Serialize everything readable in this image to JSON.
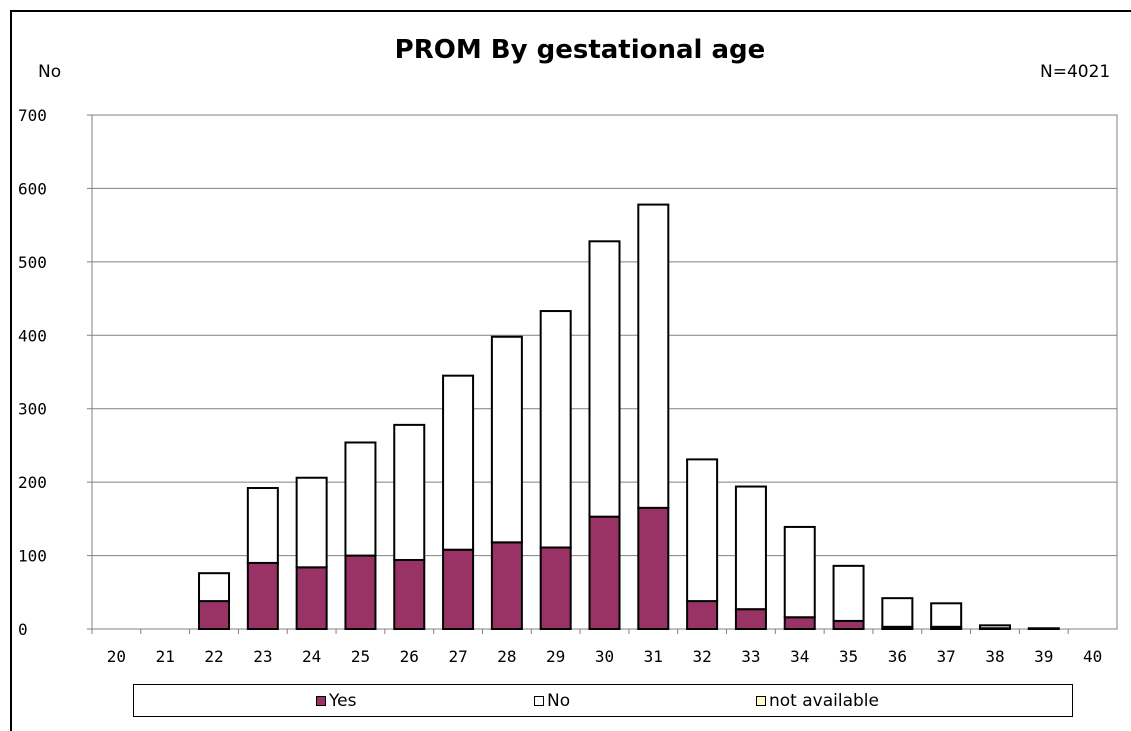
{
  "chart_data": {
    "type": "bar",
    "stacked": true,
    "title": "PROM By gestational age",
    "ylabel": "No",
    "annotation": "N=4021",
    "ylim": [
      0,
      700
    ],
    "yticks": [
      0,
      100,
      200,
      300,
      400,
      500,
      600,
      700
    ],
    "grid": true,
    "legend_position": "bottom",
    "categories": [
      "20",
      "21",
      "22",
      "23",
      "24",
      "25",
      "26",
      "27",
      "28",
      "29",
      "30",
      "31",
      "32",
      "33",
      "34",
      "35",
      "36",
      "37",
      "38",
      "39",
      "40"
    ],
    "series": [
      {
        "name": "Yes",
        "color": "#993366",
        "values": [
          0,
          0,
          38,
          90,
          84,
          100,
          94,
          108,
          118,
          111,
          153,
          165,
          38,
          27,
          16,
          11,
          3,
          3,
          1,
          0,
          0
        ]
      },
      {
        "name": "No",
        "color": "#ffffff",
        "values": [
          0,
          0,
          38,
          102,
          122,
          154,
          184,
          237,
          280,
          322,
          375,
          413,
          193,
          167,
          123,
          75,
          39,
          32,
          4,
          1,
          0
        ]
      },
      {
        "name": "not available",
        "color": "#ffffcc",
        "values": [
          0,
          0,
          0,
          0,
          0,
          0,
          0,
          0,
          0,
          0,
          0,
          0,
          0,
          0,
          0,
          0,
          0,
          0,
          0,
          0,
          0
        ]
      }
    ]
  }
}
